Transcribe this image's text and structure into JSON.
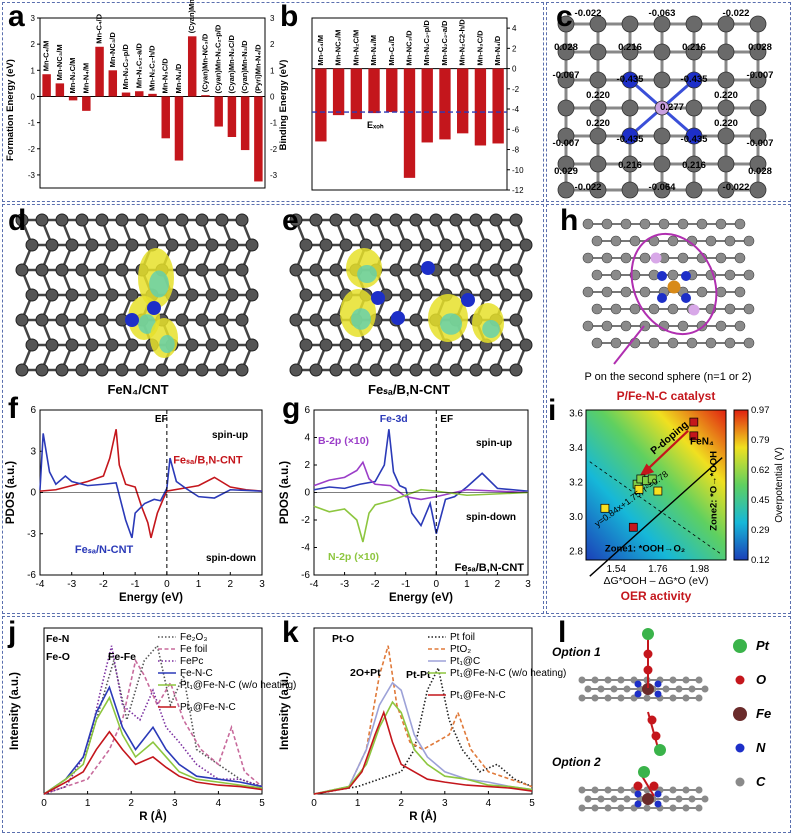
{
  "panels": {
    "a": {
      "label": "a"
    },
    "b": {
      "label": "b"
    },
    "c": {
      "label": "c"
    },
    "d": {
      "label": "d",
      "caption": "FeN₄/CNT"
    },
    "e": {
      "label": "e",
      "caption": "Feₛₐ/B,N-CNT"
    },
    "f": {
      "label": "f"
    },
    "g": {
      "label": "g"
    },
    "h": {
      "label": "h",
      "caption": "P on the second sphere (n=1 or 2)"
    },
    "i": {
      "label": "i"
    },
    "j": {
      "label": "j"
    },
    "k": {
      "label": "k"
    },
    "l": {
      "label": "l",
      "option1": "Option 1",
      "option2": "Option 2",
      "legend": [
        "Pt",
        "O",
        "Fe",
        "N",
        "C"
      ]
    }
  },
  "panel_c_charges": [
    "-0.022",
    "-0.063",
    "-0.022",
    "0.028",
    "0.216",
    "0.216",
    "0.028",
    "-0.007",
    "-0.435",
    "-0.435",
    "-0.007",
    "0.220",
    "0.220",
    "0.277",
    "0.220",
    "0.220",
    "-0.007",
    "-0.435",
    "-0.435",
    "-0.007",
    "0.029",
    "0.216",
    "0.216",
    "0.028",
    "-0.022",
    "-0.064",
    "-0.022"
  ],
  "colors": {
    "bar": "#c4161c",
    "frame": "#5a6fae",
    "blue_line": "#2b3ab8",
    "red_line": "#c4161c",
    "green_line": "#8dc63f",
    "purple_line": "#9b3ec8"
  },
  "chart_data": [
    {
      "panel": "a",
      "type": "bar",
      "orientation": "vertical",
      "ylabel": "Formation Energy (eV)",
      "ylim": [
        -3.5,
        3
      ],
      "yticks": [
        -3,
        -2,
        -1,
        0,
        1,
        2,
        3
      ],
      "categories": [
        "Mn-C₄/M",
        "Mn-NC₃/M",
        "Mn-N₂C/M",
        "Mn-N₄/M",
        "Mn-C₄/D",
        "Mn-NC₃/D",
        "Mn-N₂C₂-p/D",
        "Mn-N₂C₂-a/D",
        "Mn-N₂C₂-h/D",
        "Mn-N₃C/D",
        "Mn-N₄/D",
        "(Cyan)Mn-C₄/D",
        "(Cyan)Mn-NC₃/D",
        "(Cyan)Mn-N₂C₂-p/D",
        "(Cyan)Mn-N₂C/D",
        "(Cyan)Mn-N₃/D",
        "(Pyri)Mn-N₄/D"
      ],
      "values": [
        0.85,
        0.5,
        -0.15,
        -0.55,
        1.9,
        1.0,
        0.15,
        0.2,
        0.1,
        -1.6,
        -2.45,
        2.3,
        0.05,
        -1.15,
        -1.55,
        -2.05,
        -3.25
      ]
    },
    {
      "panel": "b",
      "type": "bar",
      "orientation": "vertical",
      "ylabel": "Binding Energy (eV)",
      "ylim": [
        -12,
        5
      ],
      "yticks": [
        4,
        2,
        0,
        -2,
        -4,
        -6,
        -8,
        -10,
        -12
      ],
      "categories": [
        "Mn-C₄/M",
        "Mn-NC₃/M",
        "Mn-N₂C/M",
        "Mn-N₄/M",
        "Mn-C₄/D",
        "Mn-NC₃/D",
        "Mn-N₂C₂-p/D",
        "Mn-N₂C₂-a/D",
        "Mn-N₂C2-h/D",
        "Mn-N₃C/D",
        "Mn-N₄/D"
      ],
      "values": [
        -7.2,
        -4.6,
        -5.0,
        -4.4,
        -4.3,
        -10.8,
        -7.3,
        -7.0,
        -6.4,
        -7.6,
        -7.4
      ],
      "reference_line": {
        "label": "Eₓₒₕ",
        "value": -4.3
      }
    },
    {
      "panel": "f",
      "type": "line",
      "xlabel": "Energy (eV)",
      "ylabel": "PDOS (a.u.)",
      "xlim": [
        -4,
        3
      ],
      "ylim": [
        -6,
        6
      ],
      "xticks": [
        -4,
        -3,
        -2,
        -1,
        0,
        1,
        2,
        3
      ],
      "yticks": [
        -6,
        -3,
        0,
        3,
        6
      ],
      "annotations": [
        "EF",
        "spin-up",
        "spin-down"
      ],
      "series": [
        {
          "name": "Feₛₐ/B,N-CNT",
          "x": [
            -4,
            -3.5,
            -3,
            -2.5,
            -2,
            -1.8,
            -1.6,
            -1.5,
            -1.3,
            -1,
            -0.8,
            -0.6,
            -0.5,
            -0.3,
            -0.1,
            0,
            0.5,
            1,
            1.5,
            2,
            2.5,
            3
          ],
          "y": [
            0.1,
            0.2,
            0.5,
            0.8,
            1.2,
            2.5,
            4.6,
            2.0,
            0.6,
            0.4,
            -1.0,
            -2.2,
            -3.3,
            -1.5,
            -0.4,
            0.1,
            0.3,
            0.5,
            1.1,
            0.4,
            0.2,
            0.1
          ]
        },
        {
          "name": "Feₛₐ/N-CNT",
          "x": [
            -4,
            -3.9,
            -3.7,
            -3.5,
            -3.2,
            -3,
            -2.5,
            -2,
            -1.6,
            -1.3,
            -1.1,
            -1,
            -0.7,
            -0.4,
            -0.2,
            0,
            0.1,
            0.3,
            0.6,
            1,
            1.5,
            2,
            3
          ],
          "y": [
            0.2,
            4.3,
            1.5,
            0.6,
            1.2,
            0.8,
            0.5,
            0.6,
            0.7,
            -2.0,
            -3.3,
            -1.5,
            -0.8,
            -0.5,
            -0.6,
            0.3,
            2.5,
            0.8,
            0.3,
            -0.3,
            -0.4,
            0.2,
            0.1
          ]
        }
      ]
    },
    {
      "panel": "g",
      "type": "line",
      "xlabel": "Energy (eV)",
      "ylabel": "PDOS (a.u.)",
      "xlim": [
        -4,
        3
      ],
      "ylim": [
        -6,
        6
      ],
      "xticks": [
        -4,
        -3,
        -2,
        -1,
        0,
        1,
        2,
        3
      ],
      "yticks": [
        -6,
        -4,
        -2,
        0,
        2,
        4,
        6
      ],
      "annotations": [
        "EF",
        "spin-up",
        "spin-down"
      ],
      "series": [
        {
          "name": "Fe-3d",
          "x": [
            -4,
            -3.5,
            -3,
            -2.5,
            -2,
            -1.7,
            -1.55,
            -1.4,
            -1.2,
            -1,
            -0.8,
            -0.5,
            -0.2,
            0,
            0.3,
            0.6,
            1,
            1.5,
            2,
            3
          ],
          "y": [
            0.2,
            0.4,
            0.3,
            0.6,
            0.8,
            2.0,
            4.6,
            1.5,
            0.5,
            0.3,
            -1.5,
            -2.4,
            -0.8,
            -3.0,
            -0.5,
            -0.3,
            0.4,
            1.4,
            0.3,
            0.1
          ]
        },
        {
          "name": "B-2p (×10)",
          "x": [
            -4,
            -3.5,
            -3,
            -2.6,
            -2.4,
            -2.2,
            -2,
            -1.5,
            -1,
            -0.5,
            0,
            1,
            2,
            3
          ],
          "y": [
            0.5,
            0.9,
            1.1,
            1.6,
            2.2,
            1.0,
            0.6,
            0.5,
            -0.3,
            -0.5,
            -0.3,
            0.2,
            0.1,
            0
          ]
        },
        {
          "name": "N-2p (×10)",
          "x": [
            -4,
            -3.5,
            -3,
            -2.6,
            -2.4,
            -2.2,
            -2,
            -1.5,
            -1,
            -0.5,
            0,
            1,
            2,
            3
          ],
          "y": [
            -1.0,
            -1.4,
            -1.2,
            -2.0,
            -3.6,
            -1.5,
            -0.9,
            -0.6,
            -0.2,
            0.2,
            0.1,
            -0.2,
            -0.1,
            0
          ]
        }
      ],
      "caption": "Feₛₐ/B,N-CNT"
    },
    {
      "panel": "i",
      "type": "scatter",
      "title": "P/Fe-N-C catalyst",
      "xlabel": "ΔG*OOH – ΔG*O (eV)",
      "ylabel": "",
      "xlim": [
        1.38,
        2.12
      ],
      "ylim": [
        2.75,
        3.62
      ],
      "xticks": [
        1.54,
        1.76,
        1.98
      ],
      "yticks": [
        2.8,
        3.0,
        3.2,
        3.4,
        3.6
      ],
      "colorbar": {
        "label": "Overpotential (V)",
        "ticks": [
          0.12,
          0.29,
          0.45,
          0.62,
          0.79,
          0.97
        ]
      },
      "fit_label": "y=0.84x+1.75, r²=0.78",
      "arrow_label": "P-doping",
      "point_label": "FeN₄",
      "zone1": "Zone1: *OOH→O₂",
      "zone2": "Zone2: *O→*OOH",
      "bottom_title": "OER activity",
      "points": [
        {
          "x": 1.95,
          "y": 3.55,
          "group": "red"
        },
        {
          "x": 1.95,
          "y": 3.47,
          "group": "red"
        },
        {
          "x": 1.63,
          "y": 2.94,
          "group": "red"
        },
        {
          "x": 1.48,
          "y": 3.05,
          "group": "yellow"
        },
        {
          "x": 1.65,
          "y": 3.19,
          "group": "green"
        },
        {
          "x": 1.67,
          "y": 3.22,
          "group": "green"
        },
        {
          "x": 1.7,
          "y": 3.21,
          "group": "green"
        },
        {
          "x": 1.73,
          "y": 3.22,
          "group": "green"
        },
        {
          "x": 1.76,
          "y": 3.15,
          "group": "yellow"
        },
        {
          "x": 1.66,
          "y": 3.16,
          "group": "yellow"
        }
      ]
    },
    {
      "panel": "j",
      "type": "line",
      "xlabel": "R (Å)",
      "ylabel": "Intensity (a.u.)",
      "xlim": [
        0,
        5
      ],
      "xticks": [
        0,
        1,
        2,
        3,
        4,
        5
      ],
      "annotations": [
        "Fe-N",
        "Fe-O",
        "Fe-Fe"
      ],
      "series": [
        {
          "name": "Fe₂O₃",
          "style": "dotted",
          "color": "#555555",
          "x": [
            0,
            0.5,
            1,
            1.3,
            1.6,
            1.9,
            2.3,
            2.6,
            2.9,
            3.2,
            3.5,
            4,
            4.5,
            5
          ],
          "y": [
            0,
            0.05,
            0.3,
            0.6,
            0.9,
            0.5,
            0.9,
            1.0,
            0.6,
            0.8,
            0.3,
            0.2,
            0.1,
            0.05
          ]
        },
        {
          "name": "Fe foil",
          "style": "dashed",
          "color": "#c86b9c",
          "x": [
            0,
            0.5,
            1,
            1.5,
            1.8,
            2.1,
            2.3,
            2.6,
            2.9,
            3.2,
            3.6,
            4,
            4.3,
            4.6,
            5
          ],
          "y": [
            0,
            0.05,
            0.1,
            0.3,
            0.5,
            0.9,
            0.8,
            0.6,
            0.75,
            0.5,
            0.3,
            0.2,
            0.45,
            0.15,
            0.05
          ]
        },
        {
          "name": "FePc",
          "style": "dotted",
          "color": "#7b2fa0",
          "x": [
            0,
            0.5,
            1,
            1.3,
            1.55,
            1.8,
            2.2,
            2.5,
            2.8,
            3.1,
            3.5,
            4,
            4.5,
            5
          ],
          "y": [
            0,
            0.05,
            0.3,
            0.7,
            1.0,
            0.6,
            0.5,
            0.7,
            0.45,
            0.35,
            0.2,
            0.1,
            0.1,
            0.05
          ]
        },
        {
          "name": "Fe-N-C",
          "style": "solid",
          "color": "#2b3ab8",
          "x": [
            0,
            0.5,
            0.9,
            1.2,
            1.5,
            1.8,
            2.1,
            2.5,
            2.8,
            3.1,
            3.5,
            4,
            4.5,
            5
          ],
          "y": [
            0,
            0.1,
            0.25,
            0.55,
            0.72,
            0.45,
            0.3,
            0.45,
            0.3,
            0.2,
            0.12,
            0.1,
            0.08,
            0.05
          ]
        },
        {
          "name": "Pt₁@Fe-N-C (w/o heating)",
          "style": "solid",
          "color": "#8dc63f",
          "x": [
            0,
            0.5,
            0.9,
            1.2,
            1.5,
            1.8,
            2.1,
            2.5,
            2.8,
            3.1,
            3.5,
            4,
            4.5,
            5
          ],
          "y": [
            0,
            0.1,
            0.2,
            0.5,
            0.65,
            0.4,
            0.25,
            0.35,
            0.25,
            0.15,
            0.1,
            0.08,
            0.06,
            0.04
          ]
        },
        {
          "name": "Pt₁@Fe-N-C",
          "style": "solid",
          "color": "#c4161c",
          "x": [
            0,
            0.5,
            0.9,
            1.2,
            1.5,
            1.8,
            2.1,
            2.5,
            2.8,
            3.1,
            3.5,
            4,
            4.5,
            5
          ],
          "y": [
            0,
            0.08,
            0.15,
            0.3,
            0.42,
            0.3,
            0.2,
            0.25,
            0.18,
            0.12,
            0.08,
            0.06,
            0.05,
            0.03
          ]
        }
      ]
    },
    {
      "panel": "k",
      "type": "line",
      "xlabel": "R (Å)",
      "ylabel": "Intensity (a.u.)",
      "xlim": [
        0,
        5
      ],
      "xticks": [
        0,
        1,
        2,
        3,
        4,
        5
      ],
      "annotations": [
        "Pt-O",
        "2O+Pt",
        "Pt-Pt"
      ],
      "series": [
        {
          "name": "Pt foil",
          "style": "dotted",
          "color": "#222222",
          "x": [
            0,
            1,
            1.5,
            2,
            2.3,
            2.6,
            2.85,
            3.1,
            3.4,
            3.8,
            4.2,
            4.6,
            5
          ],
          "y": [
            0,
            0.05,
            0.1,
            0.15,
            0.3,
            0.7,
            0.85,
            0.5,
            0.3,
            0.15,
            0.2,
            0.1,
            0.05
          ]
        },
        {
          "name": "PtO₂",
          "style": "dashed",
          "color": "#e07a3a",
          "x": [
            0,
            0.8,
            1.2,
            1.5,
            1.7,
            1.9,
            2.2,
            2.5,
            2.8,
            3.1,
            3.3,
            3.6,
            4,
            4.5,
            5
          ],
          "y": [
            0,
            0.05,
            0.3,
            0.8,
            1.0,
            0.6,
            0.35,
            0.3,
            0.35,
            0.4,
            0.55,
            0.3,
            0.15,
            0.1,
            0.05
          ]
        },
        {
          "name": "Pt₁@C",
          "style": "solid",
          "color": "#9da2d8",
          "x": [
            0,
            0.8,
            1.2,
            1.5,
            1.8,
            2.0,
            2.3,
            2.6,
            3,
            3.5,
            4,
            4.5,
            5
          ],
          "y": [
            0,
            0.05,
            0.3,
            0.6,
            0.75,
            0.7,
            0.4,
            0.25,
            0.15,
            0.1,
            0.08,
            0.05,
            0.03
          ]
        },
        {
          "name": "Pt₁@Fe-N-C (w/o heating)",
          "style": "solid",
          "color": "#8dc63f",
          "x": [
            0,
            0.8,
            1.2,
            1.5,
            1.8,
            2.0,
            2.3,
            2.6,
            3,
            3.5,
            4,
            4.5,
            5
          ],
          "y": [
            0,
            0.05,
            0.2,
            0.45,
            0.62,
            0.55,
            0.3,
            0.2,
            0.12,
            0.1,
            0.06,
            0.05,
            0.03
          ]
        },
        {
          "name": "Pt₁@Fe-N-C",
          "style": "solid",
          "color": "#c4161c",
          "x": [
            0,
            0.8,
            1.1,
            1.4,
            1.6,
            1.8,
            2.0,
            2.3,
            2.6,
            3,
            3.5,
            4,
            4.5,
            5
          ],
          "y": [
            0,
            0.04,
            0.15,
            0.4,
            0.55,
            0.35,
            0.2,
            0.15,
            0.1,
            0.08,
            0.06,
            0.05,
            0.04,
            0.02
          ]
        }
      ]
    }
  ]
}
